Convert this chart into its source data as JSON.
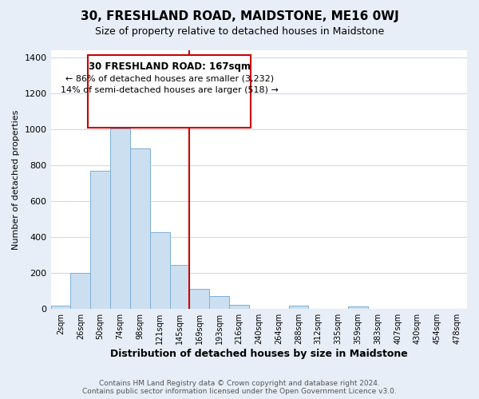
{
  "title": "30, FRESHLAND ROAD, MAIDSTONE, ME16 0WJ",
  "subtitle": "Size of property relative to detached houses in Maidstone",
  "xlabel": "Distribution of detached houses by size in Maidstone",
  "ylabel": "Number of detached properties",
  "bar_labels": [
    "2sqm",
    "26sqm",
    "50sqm",
    "74sqm",
    "98sqm",
    "121sqm",
    "145sqm",
    "169sqm",
    "193sqm",
    "216sqm",
    "240sqm",
    "264sqm",
    "288sqm",
    "312sqm",
    "335sqm",
    "359sqm",
    "383sqm",
    "407sqm",
    "430sqm",
    "454sqm",
    "478sqm"
  ],
  "bar_heights": [
    20,
    200,
    770,
    1005,
    893,
    425,
    245,
    112,
    72,
    22,
    0,
    0,
    18,
    0,
    0,
    14,
    0,
    0,
    0,
    0,
    0
  ],
  "bar_color": "#ccdff0",
  "bar_edge_color": "#7aafd4",
  "reference_line_x": 7,
  "reference_line_color": "#cc0000",
  "ylim": [
    0,
    1440
  ],
  "yticks": [
    0,
    200,
    400,
    600,
    800,
    1000,
    1200,
    1400
  ],
  "annotation_title": "30 FRESHLAND ROAD: 167sqm",
  "annotation_line1": "← 86% of detached houses are smaller (3,232)",
  "annotation_line2": "14% of semi-detached houses are larger (518) →",
  "annotation_box_facecolor": "#ffffff",
  "annotation_box_edgecolor": "#cc0000",
  "footer_line1": "Contains HM Land Registry data © Crown copyright and database right 2024.",
  "footer_line2": "Contains public sector information licensed under the Open Government Licence v3.0.",
  "fig_bg_color": "#e8eef8",
  "plot_bg_color": "#ffffff",
  "grid_color": "#ccdaed"
}
